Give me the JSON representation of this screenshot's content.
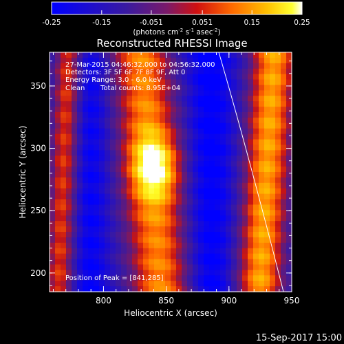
{
  "chart_data": {
    "type": "heatmap",
    "title": "Reconstructed RHESSI Image",
    "colorbar": {
      "ticks": [
        "-0.25",
        "-0.15",
        "-0.051",
        "0.051",
        "0.15",
        "0.25"
      ],
      "range": [
        -0.25,
        0.25
      ],
      "units_main": "(photons cm",
      "units_sup1": "-2",
      "units_mid": " s",
      "units_sup2": "-1",
      "units_end": " asec",
      "units_sup3": "-2",
      "units_close": ")"
    },
    "xlabel": "Heliocentric X (arcsec)",
    "ylabel": "Heliocentric Y (arcsec)",
    "xlim": [
      757,
      950
    ],
    "ylim": [
      185,
      377
    ],
    "xticks": [
      "800",
      "850",
      "900",
      "950"
    ],
    "yticks": [
      "200",
      "250",
      "300",
      "350"
    ],
    "annotations": {
      "line1": "27-Mar-2015 04:46:32.000 to 04:56:32.000",
      "line2": "Detectors: 3F 5F 6F 7F 8F 9F, Att 0",
      "line3": "Energy Range: 3.0 - 6.0 keV",
      "line4_a": "Clean",
      "line4_b": "Total counts: 8.95E+04",
      "peak": "Position of Peak = [841,285]"
    },
    "peak_position": [
      841,
      285
    ],
    "timestamp": "15-Sep-2017 15:00",
    "colormap": [
      "#0000ff",
      "#5a1a8a",
      "#ff0000",
      "#ffa000",
      "#ffff00",
      "#ffffff"
    ]
  }
}
